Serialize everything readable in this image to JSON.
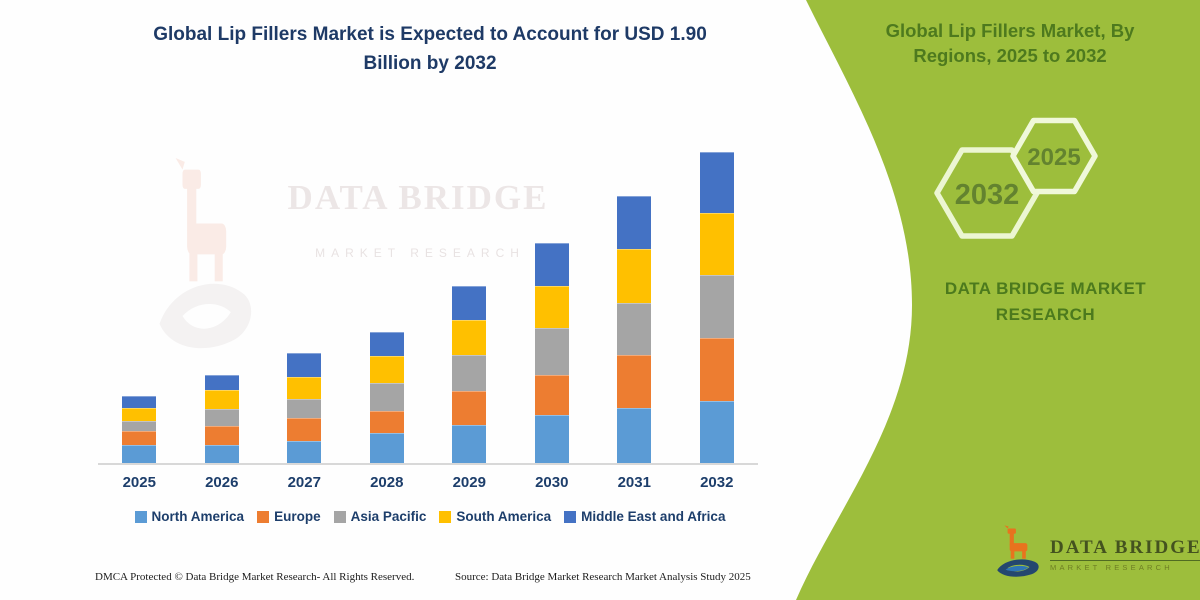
{
  "title": {
    "text": "Global Lip Fillers Market is Expected to Account for USD 1.90 Billion by 2032"
  },
  "chart_data": {
    "type": "bar",
    "stacked": true,
    "title": "Global Lip Fillers Market is Expected to Account for USD 1.90 Billion by 2032",
    "categories": [
      "2025",
      "2026",
      "2027",
      "2028",
      "2029",
      "2030",
      "2031",
      "2032"
    ],
    "series": [
      {
        "name": "North America",
        "color": "#5B9BD5",
        "values": [
          0.11,
          0.11,
          0.134,
          0.183,
          0.232,
          0.293,
          0.336,
          0.379
        ]
      },
      {
        "name": "Europe",
        "color": "#ED7D31",
        "values": [
          0.086,
          0.116,
          0.141,
          0.134,
          0.208,
          0.244,
          0.324,
          0.385
        ]
      },
      {
        "name": "Asia Pacific",
        "color": "#A5A5A5",
        "values": [
          0.061,
          0.104,
          0.116,
          0.171,
          0.22,
          0.287,
          0.318,
          0.385
        ]
      },
      {
        "name": "South America",
        "color": "#FFC000",
        "values": [
          0.079,
          0.116,
          0.134,
          0.165,
          0.214,
          0.257,
          0.33,
          0.379
        ]
      },
      {
        "name": "Middle East and Africa",
        "color": "#4472C4",
        "values": [
          0.073,
          0.092,
          0.147,
          0.147,
          0.208,
          0.263,
          0.324,
          0.373
        ]
      }
    ],
    "value_unit": "USD billion (estimated from bar heights)",
    "totals_by_year": [
      0.41,
      0.54,
      0.67,
      0.8,
      1.08,
      1.34,
      1.63,
      1.9
    ],
    "final_value_label": "USD 1.90 Billion by 2032",
    "xlabel": "",
    "ylabel": "",
    "y_axis_shown": false,
    "grid": false,
    "legend_position": "bottom"
  },
  "watermark": {
    "line1": "DATA BRIDGE",
    "line2": "MARKET RESEARCH"
  },
  "footer": {
    "dmca": "DMCA Protected © Data Bridge Market Research-  All Rights Reserved.",
    "source": "Source: Data Bridge Market Research  Market Analysis Study 2025"
  },
  "side_panel": {
    "heading": "Global Lip Fillers Market, By Regions, 2025 to 2032",
    "hexagons": [
      {
        "label": "2032"
      },
      {
        "label": "2025"
      }
    ],
    "brand_text": "DATA BRIDGE MARKET RESEARCH",
    "logo": {
      "wordmark": "DATA BRIDGE",
      "subtext": "MARKET RESEARCH"
    },
    "colors": {
      "background": "#9DBE3C",
      "text_green": "#4E7A1E",
      "hexagon_outline": "#ECF6D2"
    }
  },
  "colors": {
    "title_navy": "#1E3A66",
    "axis_label_navy": "#1D3E6B",
    "axis_line": "#D8D8D8",
    "logo_orange": "#E8731E",
    "logo_blue": "#24476F"
  }
}
